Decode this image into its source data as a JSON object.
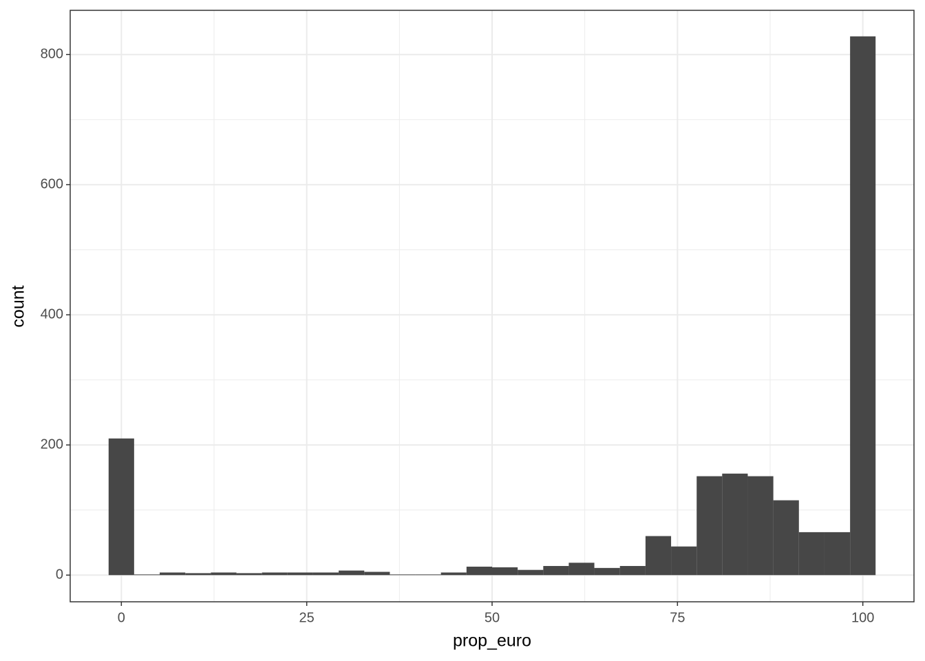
{
  "chart_data": {
    "type": "histogram",
    "x_label": "prop_euro",
    "y_label": "count",
    "bins": [
      -1.72,
      1.72,
      5.17,
      8.62,
      12.07,
      15.52,
      18.97,
      22.41,
      25.86,
      29.31,
      32.76,
      36.21,
      39.66,
      43.1,
      46.55,
      50.0,
      53.45,
      56.9,
      60.34,
      63.79,
      67.24,
      70.69,
      74.14,
      77.59,
      81.03,
      84.48,
      87.93,
      91.38,
      94.83,
      98.28,
      101.72
    ],
    "counts": [
      210,
      1,
      4,
      3,
      4,
      3,
      4,
      4,
      4,
      7,
      5,
      1,
      1,
      4,
      13,
      12,
      8,
      14,
      19,
      11,
      14,
      60,
      44,
      152,
      156,
      152,
      115,
      66,
      66,
      828
    ],
    "color": "#474747",
    "xlim": [
      -6.9,
      106.9
    ],
    "xticks": [
      0,
      25,
      50,
      75,
      100
    ],
    "minor_xticks": [
      12.5,
      37.5,
      62.5,
      87.5
    ],
    "ylim": [
      -41,
      868
    ],
    "yticks": [
      0,
      200,
      400,
      600,
      800
    ],
    "minor_yticks": [
      100,
      300,
      500,
      700
    ],
    "grid": true
  }
}
